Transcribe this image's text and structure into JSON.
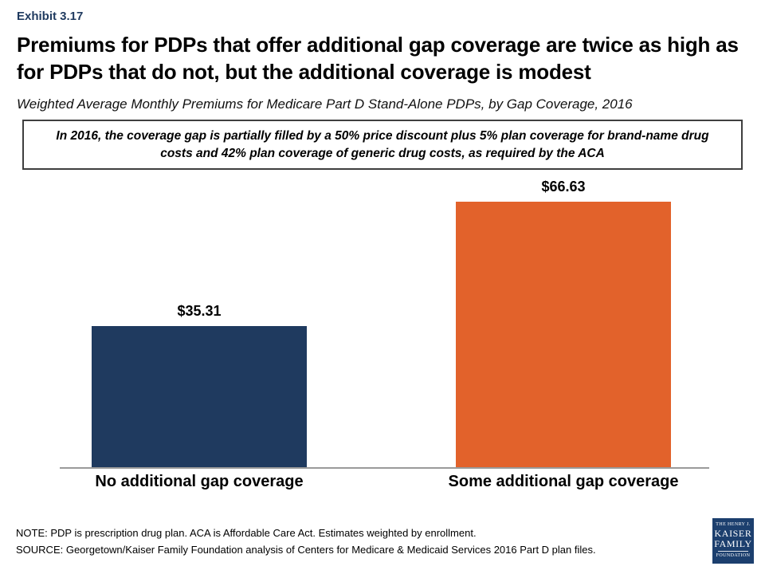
{
  "header": {
    "exhibit_label": "Exhibit 3.17",
    "title_lines": [
      "Premiums for PDPs that offer additional gap coverage are twice as",
      "high as for PDPs that do not, but the additional coverage is modest"
    ],
    "subtitle": "Weighted Average Monthly Premiums for Medicare Part D Stand-Alone PDPs, by Gap Coverage, 2016"
  },
  "callout": {
    "text": "In 2016, the coverage gap is partially filled by a 50% price discount plus 5% plan coverage for brand-name drug costs and 42% plan coverage of generic drug costs, as required by the ACA"
  },
  "chart_data": {
    "type": "bar",
    "title": "Weighted Average Monthly Premiums for Medicare Part D Stand-Alone PDPs, by Gap Coverage, 2016",
    "categories": [
      "No additional gap coverage",
      "Some additional gap coverage"
    ],
    "values": [
      35.31,
      66.63
    ],
    "value_labels": [
      "$35.31",
      "$66.63"
    ],
    "bar_colors": [
      "#1f3a5f",
      "#e2622b"
    ],
    "xlabel": "",
    "ylabel": "",
    "ylim": [
      0,
      70
    ],
    "grid": false,
    "legend": false
  },
  "footer": {
    "note": "NOTE: PDP is prescription drug plan. ACA is Affordable Care Act. Estimates weighted by enrollment.",
    "source": "SOURCE: Georgetown/Kaiser Family Foundation analysis of Centers for Medicare & Medicaid Services 2016 Part D plan files."
  },
  "logo": {
    "line1": "THE HENRY J.",
    "line2": "KAISER",
    "line3": "FAMILY",
    "line4": "FOUNDATION",
    "bg_color": "#1c3f6e"
  }
}
